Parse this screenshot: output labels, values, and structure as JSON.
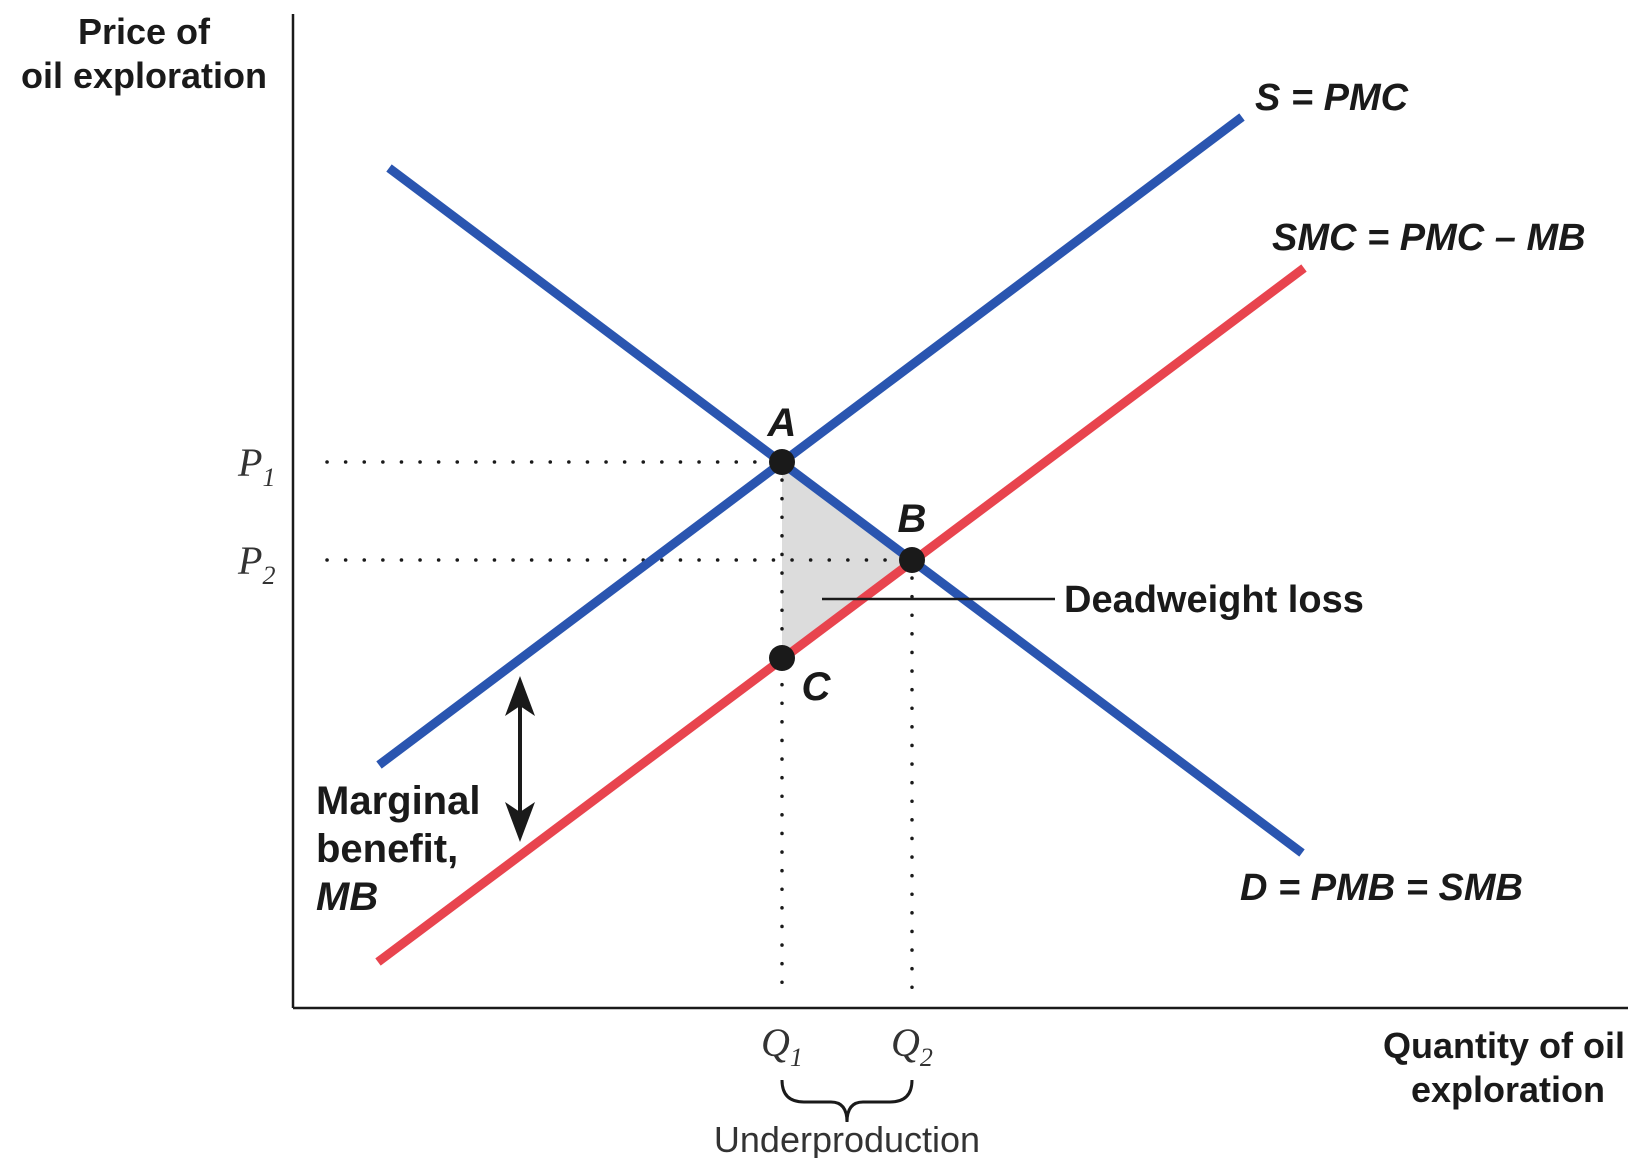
{
  "axes": {
    "y_label_line1": "Price of",
    "y_label_line2": "oil exploration",
    "x_label_line1": "Quantity of oil",
    "x_label_line2": "exploration"
  },
  "prices": {
    "p1": {
      "base": "P",
      "sub": "1"
    },
    "p2": {
      "base": "P",
      "sub": "2"
    }
  },
  "quantities": {
    "q1": {
      "base": "Q",
      "sub": "1"
    },
    "q2": {
      "base": "Q",
      "sub": "2"
    }
  },
  "curves": {
    "supply": {
      "label": "S = PMC",
      "color": "#2a55b0"
    },
    "smc": {
      "label": "SMC = PMC – MB",
      "color": "#e8444e"
    },
    "demand": {
      "label": "D = PMB = SMB",
      "color": "#2a55b0"
    }
  },
  "points": {
    "a": "A",
    "b": "B",
    "c": "C"
  },
  "annotations": {
    "deadweight_loss": "Deadweight loss",
    "marginal_benefit_line1": "Marginal",
    "marginal_benefit_line2": "benefit,",
    "marginal_benefit_line3": "MB",
    "underproduction": "Underproduction"
  },
  "colors": {
    "axis": "#1a1a1a",
    "dwl_fill": "#dcdcdc"
  }
}
